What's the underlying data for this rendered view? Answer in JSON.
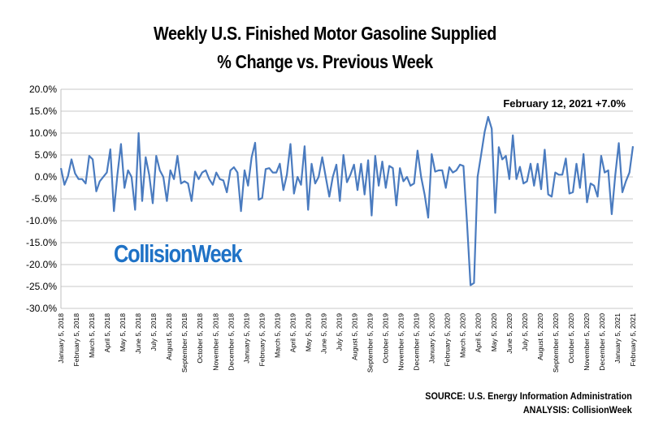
{
  "chart_data": {
    "type": "line",
    "title": "Weekly U.S. Finished Motor Gasoline Supplied",
    "subtitle": "% Change vs. Previous Week",
    "annotation": "February 12, 2021 +7.0%",
    "ylim": [
      -30,
      20
    ],
    "y_ticks": [
      20,
      15,
      10,
      5,
      0,
      -5,
      -10,
      -15,
      -20,
      -25,
      -30
    ],
    "y_tick_labels": [
      "20.0%",
      "15.0%",
      "10.0%",
      "5.0%",
      "0.0%",
      "-5.0%",
      "-10.0%",
      "-15.0%",
      "-20.0%",
      "-25.0%",
      "-30.0%"
    ],
    "x_tick_labels": [
      "January 5, 2018",
      "February 5, 2018",
      "March 5, 2018",
      "April 5, 2018",
      "May 5, 2018",
      "June 5, 2018",
      "July 5, 2018",
      "August 5, 2018",
      "September 5, 2018",
      "October 5, 2018",
      "November 5, 2018",
      "December 5, 2018",
      "January 5, 2019",
      "February 5, 2019",
      "March 5, 2019",
      "April 5, 2019",
      "May 5, 2019",
      "June 5, 2019",
      "July 5, 2019",
      "August 5, 2019",
      "September 5, 2019",
      "October 5, 2019",
      "November 5, 2019",
      "December 5, 2019",
      "January 5, 2020",
      "February 5, 2020",
      "March 5, 2020",
      "April 5, 2020",
      "May 5, 2020",
      "June 5, 2020",
      "July 5, 2020",
      "August 5, 2020",
      "September 5, 2020",
      "October 5, 2020",
      "November 5, 2020",
      "December 5, 2020",
      "January 5, 2021",
      "February 5, 2021"
    ],
    "grid": true,
    "line_color": "#4a7bbf",
    "x_start": "January 5, 2018",
    "x_end": "February 12, 2021",
    "series": [
      {
        "values": [
          2.0,
          -1.8,
          0.2,
          4.0,
          0.8,
          -0.5,
          -0.5,
          -1.5,
          4.8,
          4.0,
          -3.3,
          -1.0,
          0.0,
          1.0,
          6.3,
          -7.8,
          0.5,
          7.5,
          -2.5,
          1.5,
          0.0,
          -7.5,
          10.0,
          -5.5,
          4.5,
          0.5,
          -6.0,
          4.8,
          1.5,
          0.0,
          -5.5,
          1.5,
          -0.5,
          4.8,
          -1.5,
          -1.0,
          -1.5,
          -5.5,
          1.2,
          -0.5,
          1.0,
          1.5,
          -0.5,
          -1.8,
          1.0,
          -0.5,
          -0.8,
          -3.5,
          1.5,
          2.2,
          1.0,
          -7.8,
          1.5,
          -2.0,
          4.5,
          7.8,
          -5.2,
          -4.8,
          1.8,
          2.0,
          1.0,
          1.0,
          3.0,
          -3.0,
          0.5,
          7.5,
          -3.8,
          0.0,
          -1.8,
          7.0,
          -7.5,
          3.0,
          -1.5,
          0.0,
          4.5,
          0.0,
          -4.5,
          0.0,
          2.8,
          -5.5,
          5.0,
          -1.2,
          0.5,
          2.8,
          -3.0,
          3.0,
          -4.0,
          3.8,
          -8.8,
          4.8,
          -2.0,
          3.5,
          -2.5,
          2.5,
          2.0,
          -6.5,
          2.0,
          -1.0,
          0.0,
          -2.0,
          -1.5,
          6.0,
          0.0,
          -4.0,
          -9.3,
          5.2,
          1.2,
          1.5,
          1.5,
          -2.5,
          2.2,
          1.0,
          1.5,
          2.8,
          2.5,
          -10.5,
          -24.7,
          -24.2,
          0.0,
          5.0,
          10.3,
          13.7,
          11.0,
          -8.2,
          6.8,
          4.0,
          4.8,
          -0.5,
          9.5,
          -0.5,
          2.3,
          -1.5,
          -1.0,
          3.0,
          -2.0,
          3.0,
          -2.8,
          6.2,
          -4.0,
          -4.5,
          1.0,
          0.5,
          0.5,
          4.2,
          -3.8,
          -3.5,
          3.0,
          -2.5,
          5.2,
          -5.8,
          -1.5,
          -2.0,
          -4.5,
          4.8,
          1.0,
          1.5,
          -8.5,
          0.5,
          7.7,
          -3.5,
          -1.0,
          1.0,
          7.0
        ]
      }
    ]
  },
  "logo_text": "CollisionWeek",
  "footer": {
    "source": "SOURCE: U.S. Energy Information Administration",
    "analysis": "ANALYSIS: CollisionWeek"
  }
}
